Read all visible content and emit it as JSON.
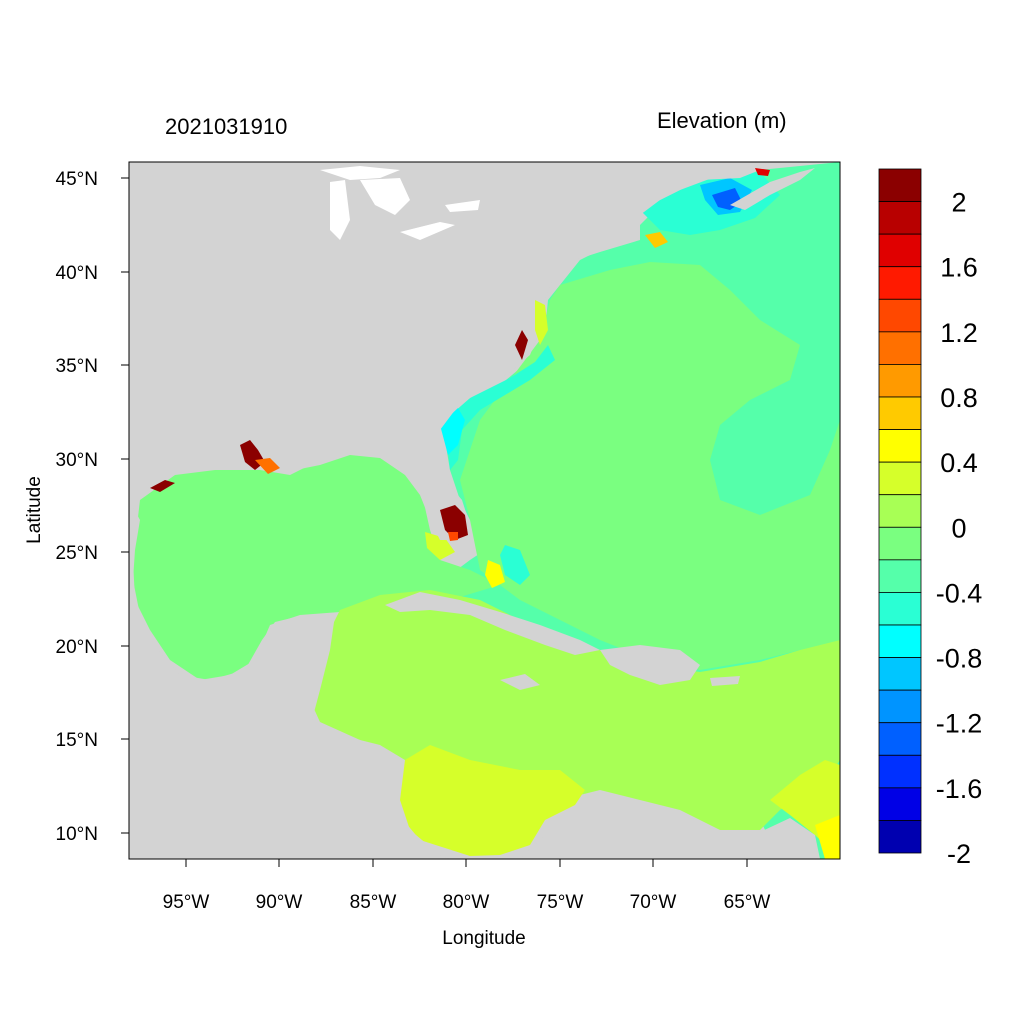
{
  "header": {
    "timestamp": "2021031910",
    "variable_label": "Elevation (m)"
  },
  "axes": {
    "xlabel": "Longitude",
    "ylabel": "Latitude",
    "x_ticks": [
      "95°W",
      "90°W",
      "85°W",
      "80°W",
      "75°W",
      "70°W",
      "65°W"
    ],
    "y_ticks": [
      "10°N",
      "15°N",
      "20°N",
      "25°N",
      "30°N",
      "35°N",
      "40°N",
      "45°N"
    ],
    "lon_range": [
      -98,
      -60
    ],
    "lat_range": [
      8.5,
      46
    ]
  },
  "colorbar": {
    "labels": [
      "2",
      "1.6",
      "1.2",
      "0.8",
      "0.4",
      "0",
      "-0.4",
      "-0.8",
      "-1.2",
      "-1.6",
      "-2"
    ],
    "colors_top_to_bottom": [
      "#8b0000",
      "#b80000",
      "#e00000",
      "#ff1a00",
      "#ff4800",
      "#ff7000",
      "#ff9a00",
      "#ffca00",
      "#ffff00",
      "#d6ff2a",
      "#a8ff55",
      "#7aff80",
      "#55ffaa",
      "#2affd4",
      "#00ffff",
      "#00c6ff",
      "#0094ff",
      "#0060ff",
      "#0030ff",
      "#0000e6",
      "#0000b0"
    ]
  },
  "colors": {
    "land": "#d3d3d3",
    "lakes": "#ffffff",
    "ocean_zero": "#7aff80",
    "caribbean": "#a8ff55",
    "south_caribbean": "#d6ff2a",
    "atlantic": "#55ffaa",
    "coastal_low": "#2affd4",
    "surge_high": "#8b0000"
  }
}
